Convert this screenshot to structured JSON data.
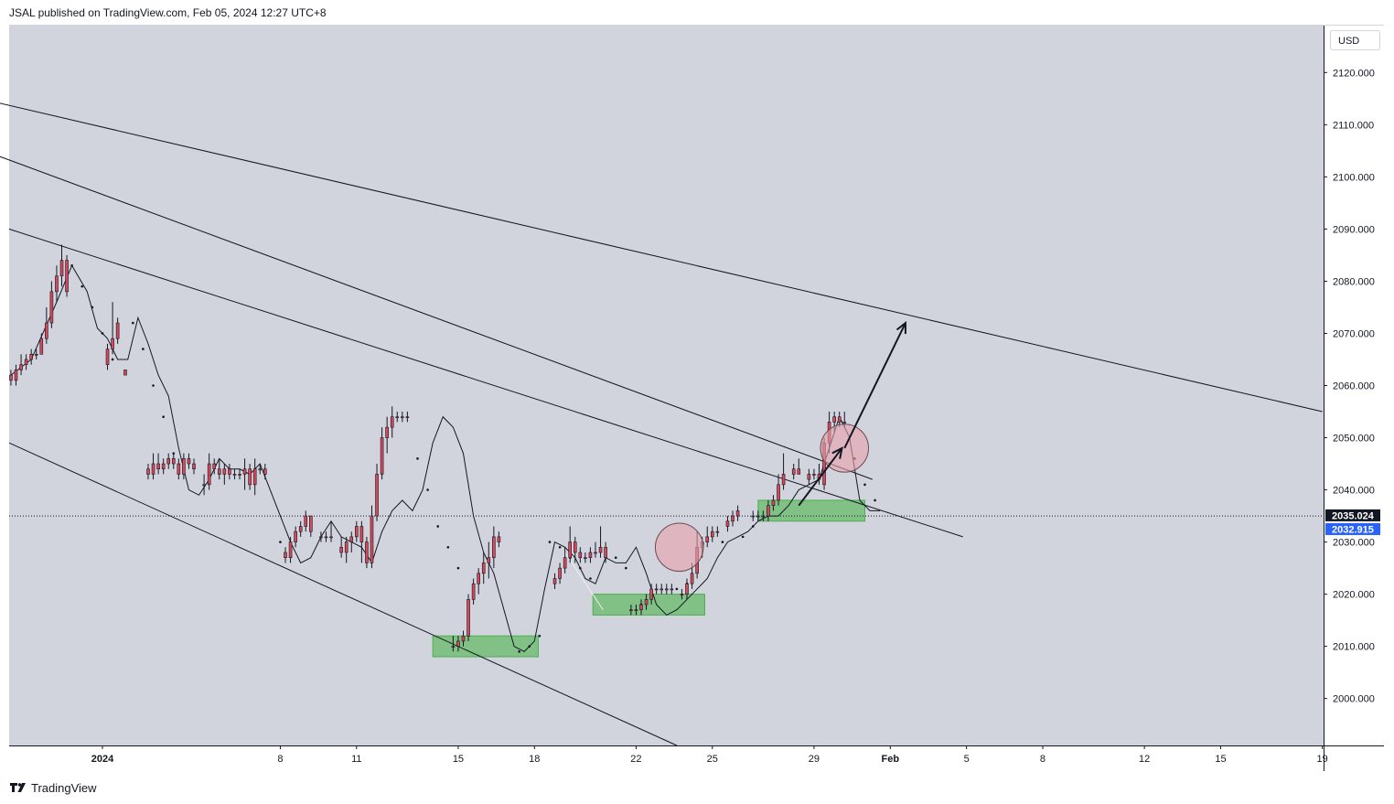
{
  "header": {
    "published_text": "JSAL published on TradingView.com, Feb 05, 2024 12:27 UTC+8"
  },
  "currency_button": {
    "label": "USD"
  },
  "footer": {
    "brand": "TradingView"
  },
  "price_tags": [
    {
      "label": "2035.024",
      "value": 2035.024,
      "bg": "#131722"
    },
    {
      "label": "2032.915",
      "value": 2032.915,
      "bg": "#2962ff"
    }
  ],
  "colors": {
    "background": "#d1d4dc",
    "candle": "#d9475a",
    "zone": "#66bb6a",
    "circle": "#e8a2ad",
    "line": "#131722"
  },
  "chart_data": {
    "type": "candlestick",
    "symbol_hint": "price chart with parallel channels",
    "ylim": [
      1991,
      2129
    ],
    "y_ticks": [
      {
        "label": "2120.000",
        "value": 2120
      },
      {
        "label": "2110.000",
        "value": 2110
      },
      {
        "label": "2100.000",
        "value": 2100
      },
      {
        "label": "2090.000",
        "value": 2090
      },
      {
        "label": "2080.000",
        "value": 2080
      },
      {
        "label": "2070.000",
        "value": 2070
      },
      {
        "label": "2060.000",
        "value": 2060
      },
      {
        "label": "2050.000",
        "value": 2050
      },
      {
        "label": "2040.000",
        "value": 2040
      },
      {
        "label": "2030.000",
        "value": 2030
      },
      {
        "label": "2020.000",
        "value": 2020
      },
      {
        "label": "2010.000",
        "value": 2010
      },
      {
        "label": "2000.000",
        "value": 2000
      }
    ],
    "x_ticks": [
      {
        "label": "2024",
        "t": 1.0,
        "bold": true
      },
      {
        "label": "8",
        "t": 8.0
      },
      {
        "label": "11",
        "t": 11.0
      },
      {
        "label": "15",
        "t": 15.0
      },
      {
        "label": "18",
        "t": 18.0
      },
      {
        "label": "22",
        "t": 22.0
      },
      {
        "label": "25",
        "t": 25.0
      },
      {
        "label": "29",
        "t": 29.0
      },
      {
        "label": "Feb",
        "t": 32.0,
        "bold": true
      },
      {
        "label": "5",
        "t": 35.0
      },
      {
        "label": "8",
        "t": 38.0
      },
      {
        "label": "12",
        "t": 42.0
      },
      {
        "label": "15",
        "t": 45.0
      },
      {
        "label": "19",
        "t": 49.0
      }
    ],
    "xlim": [
      -2.67,
      49.05
    ],
    "candles": [
      [
        -2.6,
        2062,
        2063,
        2060,
        2061
      ],
      [
        -2.4,
        2061,
        2064,
        2060,
        2063
      ],
      [
        -2.2,
        2063,
        2066,
        2062,
        2064
      ],
      [
        -2.0,
        2064,
        2066,
        2063,
        2065
      ],
      [
        -1.8,
        2065,
        2067,
        2064,
        2066
      ],
      [
        -1.6,
        2066,
        2067,
        2065,
        2066
      ],
      [
        -1.4,
        2066,
        2070,
        2066,
        2069
      ],
      [
        -1.2,
        2069,
        2075,
        2068,
        2072
      ],
      [
        -1.0,
        2072,
        2080,
        2071,
        2078
      ],
      [
        -0.8,
        2078,
        2083,
        2076,
        2081
      ],
      [
        -0.6,
        2081,
        2087,
        2079,
        2084
      ],
      [
        -0.4,
        2084,
        2085,
        2077,
        2078
      ],
      [
        1.2,
        2064,
        2068,
        2063,
        2067
      ],
      [
        1.4,
        2067,
        2076,
        2066,
        2069
      ],
      [
        1.6,
        2069,
        2073,
        2068,
        2072
      ],
      [
        1.9,
        2063,
        2063,
        2062,
        2062
      ],
      [
        2.8,
        2044,
        2045,
        2042,
        2043
      ],
      [
        3.0,
        2043,
        2047,
        2042,
        2045
      ],
      [
        3.2,
        2045,
        2047,
        2043,
        2044
      ],
      [
        3.4,
        2044,
        2046,
        2043,
        2045
      ],
      [
        3.6,
        2045,
        2047,
        2044,
        2046
      ],
      [
        3.8,
        2046,
        2047,
        2044,
        2045
      ],
      [
        4.0,
        2045,
        2046,
        2042,
        2043
      ],
      [
        4.2,
        2043,
        2047,
        2042,
        2046
      ],
      [
        4.4,
        2046,
        2047,
        2044,
        2045
      ],
      [
        4.6,
        2045,
        2046,
        2043,
        2044
      ],
      [
        5.0,
        2041,
        2043,
        2039,
        2041
      ],
      [
        5.2,
        2041,
        2047,
        2040,
        2045
      ],
      [
        5.4,
        2045,
        2046,
        2043,
        2044
      ],
      [
        5.6,
        2044,
        2046,
        2042,
        2043
      ],
      [
        5.8,
        2043,
        2045,
        2041,
        2044
      ],
      [
        6.0,
        2044,
        2045,
        2042,
        2043
      ],
      [
        6.2,
        2043,
        2044,
        2042,
        2043
      ],
      [
        6.4,
        2043,
        2044,
        2042,
        2043
      ],
      [
        6.6,
        2043,
        2046,
        2040,
        2044
      ],
      [
        6.8,
        2044,
        2045,
        2040,
        2041
      ],
      [
        7.0,
        2041,
        2046,
        2039,
        2044
      ],
      [
        7.2,
        2044,
        2045,
        2043,
        2044
      ],
      [
        7.4,
        2044,
        2045,
        2042,
        2043
      ],
      [
        8.2,
        2028,
        2029,
        2026,
        2027
      ],
      [
        8.4,
        2027,
        2031,
        2026,
        2030
      ],
      [
        8.6,
        2030,
        2033,
        2029,
        2032
      ],
      [
        8.8,
        2032,
        2034,
        2031,
        2033
      ],
      [
        9.0,
        2033,
        2036,
        2032,
        2035
      ],
      [
        9.2,
        2035,
        2034,
        2031,
        2032
      ],
      [
        9.6,
        2031,
        2032,
        2030,
        2031
      ],
      [
        9.8,
        2031,
        2032,
        2030,
        2031
      ],
      [
        10.0,
        2031,
        2034,
        2030,
        2031
      ],
      [
        10.4,
        2029,
        2031,
        2027,
        2028
      ],
      [
        10.6,
        2028,
        2031,
        2026,
        2030
      ],
      [
        10.8,
        2030,
        2032,
        2028,
        2031
      ],
      [
        11.0,
        2031,
        2034,
        2030,
        2033
      ],
      [
        11.2,
        2033,
        2034,
        2026,
        2030
      ],
      [
        11.4,
        2030,
        2031,
        2025,
        2026
      ],
      [
        11.6,
        2026,
        2037,
        2025,
        2035
      ],
      [
        11.8,
        2035,
        2045,
        2034,
        2043
      ],
      [
        12.0,
        2043,
        2052,
        2042,
        2050
      ],
      [
        12.2,
        2050,
        2054,
        2047,
        2052
      ],
      [
        12.4,
        2052,
        2056,
        2050,
        2054
      ],
      [
        12.6,
        2054,
        2055,
        2053,
        2054
      ],
      [
        12.8,
        2054,
        2055,
        2053,
        2054
      ],
      [
        13.0,
        2054,
        2055,
        2053,
        2054
      ],
      [
        14.8,
        2010,
        2012,
        2009,
        2010
      ],
      [
        15.0,
        2010,
        2012,
        2009,
        2011
      ],
      [
        15.2,
        2011,
        2013,
        2010,
        2012
      ],
      [
        15.4,
        2012,
        2020,
        2011,
        2019
      ],
      [
        15.6,
        2019,
        2023,
        2018,
        2022
      ],
      [
        15.8,
        2022,
        2025,
        2020,
        2024
      ],
      [
        16.0,
        2024,
        2028,
        2022,
        2026
      ],
      [
        16.2,
        2026,
        2030,
        2023,
        2027
      ],
      [
        16.4,
        2027,
        2033,
        2025,
        2031
      ],
      [
        16.6,
        2031,
        2032,
        2029,
        2030
      ],
      [
        18.8,
        2022,
        2024,
        2021,
        2023
      ],
      [
        19.0,
        2023,
        2026,
        2022,
        2025
      ],
      [
        19.2,
        2025,
        2029,
        2024,
        2027
      ],
      [
        19.4,
        2027,
        2033,
        2026,
        2030
      ],
      [
        19.6,
        2030,
        2031,
        2026,
        2028
      ],
      [
        19.8,
        2028,
        2029,
        2026,
        2027
      ],
      [
        20.0,
        2027,
        2028,
        2026,
        2027
      ],
      [
        20.2,
        2027,
        2029,
        2026,
        2028
      ],
      [
        20.4,
        2028,
        2030,
        2027,
        2028
      ],
      [
        20.6,
        2028,
        2033,
        2027,
        2029
      ],
      [
        20.8,
        2029,
        2030,
        2026,
        2027
      ],
      [
        21.8,
        2017,
        2018,
        2016,
        2017
      ],
      [
        22.0,
        2017,
        2018,
        2016,
        2017
      ],
      [
        22.2,
        2017,
        2019,
        2016,
        2018
      ],
      [
        22.4,
        2018,
        2020,
        2017,
        2019
      ],
      [
        22.6,
        2019,
        2022,
        2018,
        2021
      ],
      [
        22.8,
        2021,
        2022,
        2020,
        2021
      ],
      [
        23.0,
        2021,
        2022,
        2020,
        2021
      ],
      [
        23.2,
        2021,
        2022,
        2020,
        2021
      ],
      [
        23.4,
        2021,
        2022,
        2020,
        2021
      ],
      [
        23.8,
        2020,
        2021,
        2019,
        2020
      ],
      [
        24.0,
        2020,
        2023,
        2019,
        2022
      ],
      [
        24.2,
        2022,
        2026,
        2021,
        2024
      ],
      [
        24.4,
        2024,
        2032,
        2023,
        2029
      ],
      [
        24.6,
        2029,
        2031,
        2027,
        2030
      ],
      [
        24.8,
        2030,
        2033,
        2029,
        2031
      ],
      [
        25.0,
        2031,
        2033,
        2030,
        2032
      ],
      [
        25.2,
        2032,
        2033,
        2031,
        2032
      ],
      [
        25.6,
        2033,
        2035,
        2032,
        2034
      ],
      [
        25.8,
        2034,
        2036,
        2033,
        2035
      ],
      [
        26.0,
        2035,
        2037,
        2034,
        2036
      ],
      [
        26.6,
        2035,
        2036,
        2034,
        2035
      ],
      [
        26.8,
        2035,
        2036,
        2034,
        2035
      ],
      [
        27.0,
        2035,
        2036,
        2034,
        2035
      ],
      [
        27.2,
        2035,
        2038,
        2034,
        2037
      ],
      [
        27.4,
        2037,
        2039,
        2036,
        2038
      ],
      [
        27.6,
        2038,
        2043,
        2037,
        2041
      ],
      [
        27.8,
        2041,
        2047,
        2040,
        2043
      ],
      [
        28.2,
        2043,
        2045,
        2042,
        2044
      ],
      [
        28.4,
        2044,
        2046,
        2043,
        2043
      ],
      [
        28.8,
        2042,
        2044,
        2041,
        2043
      ],
      [
        29.0,
        2043,
        2044,
        2042,
        2043
      ],
      [
        29.2,
        2043,
        2045,
        2041,
        2042
      ],
      [
        29.4,
        2041,
        2050,
        2040,
        2049
      ],
      [
        29.6,
        2049,
        2055,
        2047,
        2053
      ],
      [
        29.8,
        2053,
        2055,
        2051,
        2054
      ],
      [
        30.0,
        2054,
        2055,
        2052,
        2053
      ],
      [
        30.2,
        2053,
        2055,
        2052,
        2053
      ]
    ],
    "average_line": [
      [
        -2.6,
        2062
      ],
      [
        -1.8,
        2065
      ],
      [
        -0.8,
        2076
      ],
      [
        -0.2,
        2083
      ],
      [
        0.4,
        2078
      ],
      [
        0.8,
        2071
      ],
      [
        1.2,
        2069
      ],
      [
        1.6,
        2065
      ],
      [
        2.0,
        2065
      ],
      [
        2.4,
        2073
      ],
      [
        2.8,
        2068
      ],
      [
        3.2,
        2062
      ],
      [
        3.6,
        2058
      ],
      [
        4.0,
        2048
      ],
      [
        4.4,
        2040
      ],
      [
        4.8,
        2039
      ],
      [
        5.2,
        2042
      ],
      [
        5.6,
        2046
      ],
      [
        6.0,
        2044
      ],
      [
        6.4,
        2044
      ],
      [
        6.8,
        2043
      ],
      [
        7.2,
        2045
      ],
      [
        7.6,
        2040
      ],
      [
        8.0,
        2035
      ],
      [
        8.4,
        2030
      ],
      [
        8.8,
        2026
      ],
      [
        9.2,
        2027
      ],
      [
        9.6,
        2031
      ],
      [
        10.0,
        2034
      ],
      [
        10.4,
        2031
      ],
      [
        10.8,
        2030
      ],
      [
        11.2,
        2029
      ],
      [
        11.6,
        2026
      ],
      [
        12.0,
        2032
      ],
      [
        12.4,
        2036
      ],
      [
        12.8,
        2038
      ],
      [
        13.2,
        2036
      ],
      [
        13.6,
        2040
      ],
      [
        14.0,
        2049
      ],
      [
        14.4,
        2054
      ],
      [
        14.8,
        2052
      ],
      [
        15.2,
        2047
      ],
      [
        15.6,
        2035
      ],
      [
        16.0,
        2028
      ],
      [
        16.4,
        2024
      ],
      [
        16.8,
        2017
      ],
      [
        17.2,
        2010
      ],
      [
        17.6,
        2009
      ],
      [
        18.0,
        2011
      ],
      [
        18.4,
        2021
      ],
      [
        18.8,
        2030
      ],
      [
        19.2,
        2029
      ],
      [
        19.6,
        2027
      ],
      [
        20.0,
        2023
      ],
      [
        20.4,
        2022
      ],
      [
        20.8,
        2027
      ],
      [
        21.2,
        2026
      ],
      [
        21.6,
        2026
      ],
      [
        22.0,
        2029
      ],
      [
        22.4,
        2024
      ],
      [
        22.8,
        2018
      ],
      [
        23.2,
        2016
      ],
      [
        23.6,
        2017
      ],
      [
        24.0,
        2019
      ],
      [
        24.4,
        2021
      ],
      [
        24.8,
        2023
      ],
      [
        25.2,
        2027
      ],
      [
        25.6,
        2030
      ],
      [
        26.0,
        2031
      ],
      [
        26.4,
        2032
      ],
      [
        26.8,
        2034
      ],
      [
        27.2,
        2035
      ],
      [
        27.6,
        2035
      ],
      [
        28.0,
        2037
      ],
      [
        28.4,
        2040
      ],
      [
        28.8,
        2041
      ],
      [
        29.2,
        2042
      ],
      [
        29.6,
        2048
      ],
      [
        30.0,
        2054
      ],
      [
        30.4,
        2050
      ],
      [
        30.8,
        2038
      ],
      [
        31.2,
        2036
      ],
      [
        31.6,
        2036
      ]
    ],
    "dots": [
      [
        -0.2,
        2083
      ],
      [
        0.2,
        2079
      ],
      [
        0.6,
        2075
      ],
      [
        1.0,
        2070
      ],
      [
        1.4,
        2065
      ],
      [
        2.2,
        2072
      ],
      [
        2.6,
        2067
      ],
      [
        3.0,
        2060
      ],
      [
        3.4,
        2054
      ],
      [
        3.8,
        2047
      ],
      [
        4.2,
        2044
      ],
      [
        8.0,
        2030
      ],
      [
        13.4,
        2046
      ],
      [
        13.8,
        2040
      ],
      [
        14.2,
        2033
      ],
      [
        14.6,
        2029
      ],
      [
        15.0,
        2025
      ],
      [
        17.4,
        2009
      ],
      [
        17.8,
        2010
      ],
      [
        18.2,
        2012
      ],
      [
        18.6,
        2030
      ],
      [
        19.0,
        2029
      ],
      [
        19.4,
        2027
      ],
      [
        19.8,
        2025
      ],
      [
        20.2,
        2023
      ],
      [
        21.2,
        2027
      ],
      [
        21.6,
        2025
      ],
      [
        22.2,
        2018
      ],
      [
        22.6,
        2020
      ],
      [
        23.6,
        2021
      ],
      [
        24.0,
        2022
      ],
      [
        25.4,
        2030
      ],
      [
        26.2,
        2031
      ],
      [
        26.6,
        2033
      ],
      [
        30.6,
        2046
      ],
      [
        31.0,
        2041
      ],
      [
        31.4,
        2038
      ]
    ],
    "trend_lines": [
      {
        "name": "upper-channel-line",
        "t1": -12.6,
        "v1": 2125,
        "t2": 49.0,
        "v2": 2055
      },
      {
        "name": "middle-channel-line",
        "t1": -10.3,
        "v1": 2117,
        "t2": 31.3,
        "v2": 2042
      },
      {
        "name": "lower-top-channel-line",
        "t1": -2.67,
        "v1": 2090,
        "t2": 34.86,
        "v2": 2031
      },
      {
        "name": "lower-bottom-channel-line",
        "t1": -2.67,
        "v1": 2049,
        "t2": 23.6,
        "v2": 1991
      },
      {
        "name": "short-grey-line",
        "t1": 19.2,
        "v1": 2028,
        "t2": 20.7,
        "v2": 2017,
        "color": "#eef0f5"
      }
    ],
    "zones": [
      {
        "name": "support-zone-1",
        "t1": 14.0,
        "t2": 18.15,
        "v1": 2008,
        "v2": 2012
      },
      {
        "name": "support-zone-2",
        "t1": 20.3,
        "t2": 24.7,
        "v1": 2016,
        "v2": 2020
      },
      {
        "name": "support-zone-3",
        "t1": 26.8,
        "t2": 31.0,
        "v1": 2034,
        "v2": 2038
      }
    ],
    "circles": [
      {
        "name": "breakout-circle-1",
        "t": 23.7,
        "v": 2029,
        "radius_data": 4
      },
      {
        "name": "breakout-circle-2",
        "t": 30.2,
        "v": 2048,
        "radius_data": 4
      }
    ],
    "arrows": [
      {
        "name": "path-arrow-1",
        "t1": 28.4,
        "v1": 2037,
        "t2": 30.1,
        "v2": 2048
      },
      {
        "name": "path-arrow-2",
        "t1": 30.2,
        "v1": 2048,
        "t2": 32.6,
        "v2": 2072
      }
    ],
    "last_price_line": 2035
  }
}
